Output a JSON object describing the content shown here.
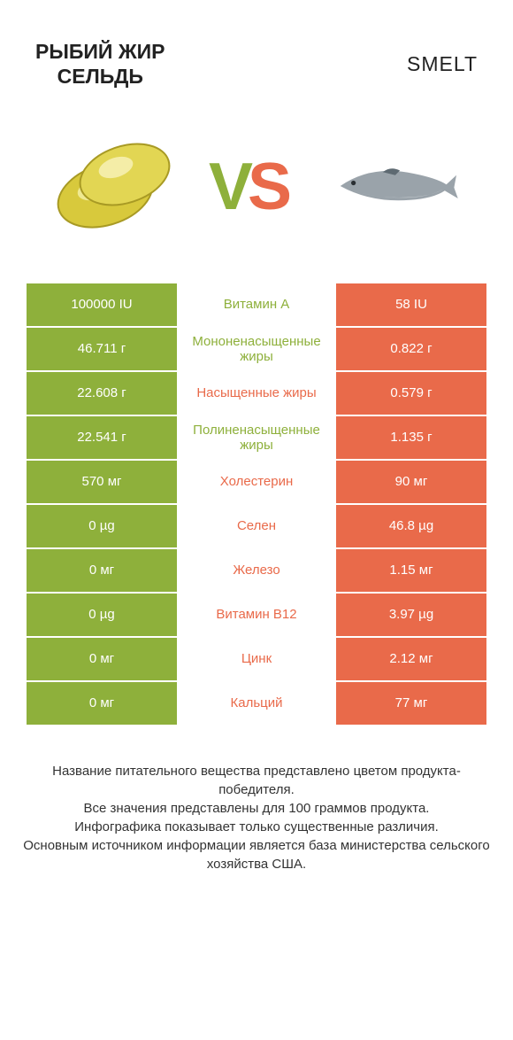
{
  "colors": {
    "left_product": "#8eb03b",
    "right_product": "#e96a4a",
    "mid_bg": "#ffffff",
    "row_border": "#ffffff",
    "text_dark": "#222222",
    "footer_text": "#333333"
  },
  "header": {
    "left_line1": "РЫБИЙ ЖИР",
    "left_line2": "СЕЛЬДЬ",
    "right": "SMELT"
  },
  "vs": {
    "v": "V",
    "s": "S"
  },
  "rows": [
    {
      "left": "100000 IU",
      "mid": "Витамин A",
      "right": "58 IU",
      "winner": "left"
    },
    {
      "left": "46.711 г",
      "mid": "Мононенасыщенные жиры",
      "right": "0.822 г",
      "winner": "left"
    },
    {
      "left": "22.608 г",
      "mid": "Насыщенные жиры",
      "right": "0.579 г",
      "winner": "right"
    },
    {
      "left": "22.541 г",
      "mid": "Полиненасыщенные жиры",
      "right": "1.135 г",
      "winner": "left"
    },
    {
      "left": "570 мг",
      "mid": "Холестерин",
      "right": "90 мг",
      "winner": "right"
    },
    {
      "left": "0 µg",
      "mid": "Селен",
      "right": "46.8 µg",
      "winner": "right"
    },
    {
      "left": "0 мг",
      "mid": "Железо",
      "right": "1.15 мг",
      "winner": "right"
    },
    {
      "left": "0 µg",
      "mid": "Витамин B12",
      "right": "3.97 µg",
      "winner": "right"
    },
    {
      "left": "0 мг",
      "mid": "Цинк",
      "right": "2.12 мг",
      "winner": "right"
    },
    {
      "left": "0 мг",
      "mid": "Кальций",
      "right": "77 мг",
      "winner": "right"
    }
  ],
  "footer": {
    "line1": "Название питательного вещества представлено цветом продукта-победителя.",
    "line2": "Все значения представлены для 100 граммов продукта.",
    "line3": "Инфографика показывает только существенные различия.",
    "line4": "Основным источником информации является база министерства сельского хозяйства США."
  },
  "illustration": {
    "capsule_fill": "#d8c93c",
    "capsule_highlight": "#f3eea0",
    "capsule_shadow": "#a89a24",
    "fish_body": "#9aa3aa",
    "fish_belly": "#d8dde0",
    "fish_dark": "#5e6a72"
  }
}
